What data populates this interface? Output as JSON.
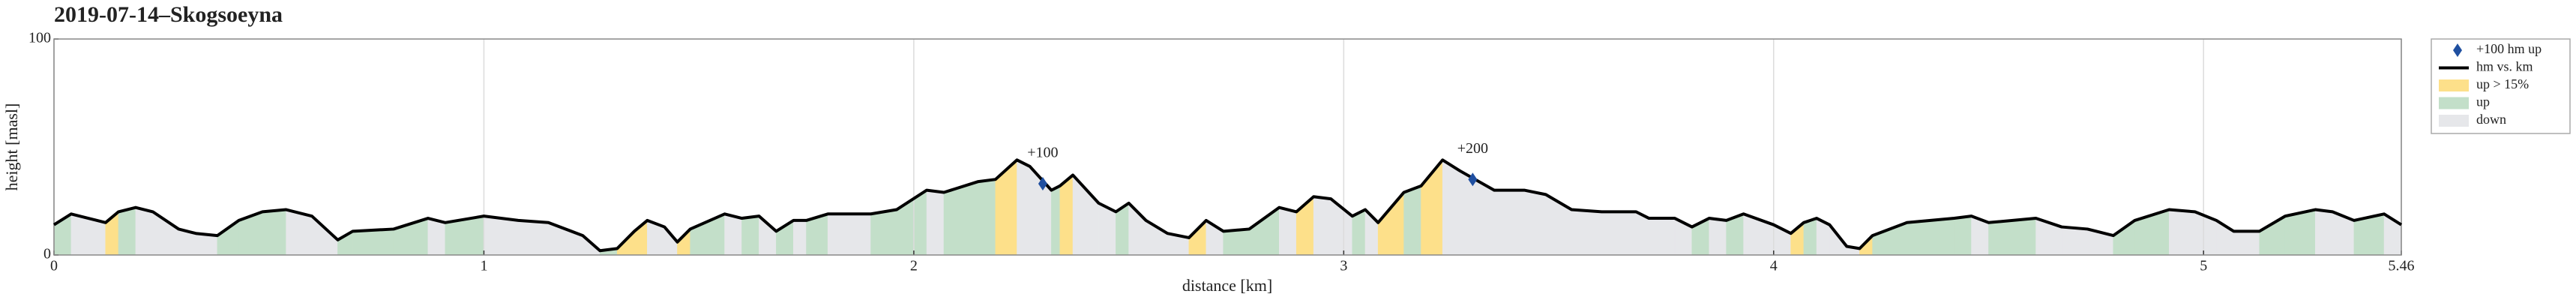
{
  "chart_data": {
    "type": "elevation",
    "title": "2019-07-14–Skogsoeyna",
    "xlabel": "distance [km]",
    "ylabel": "height [masl]",
    "xlim": [
      0,
      5.46
    ],
    "ylim": [
      0,
      100
    ],
    "xticks": [
      0,
      1,
      2,
      3,
      4,
      5,
      5.46
    ],
    "yticks": [
      0,
      100
    ],
    "grid": "x",
    "steep_grade": 15,
    "x": [
      0,
      0.04,
      0.08,
      0.12,
      0.15,
      0.19,
      0.23,
      0.29,
      0.33,
      0.38,
      0.43,
      0.485,
      0.54,
      0.6,
      0.66,
      0.695,
      0.79,
      0.87,
      0.91,
      1.0,
      1.08,
      1.15,
      1.23,
      1.27,
      1.31,
      1.35,
      1.38,
      1.42,
      1.45,
      1.48,
      1.56,
      1.6,
      1.64,
      1.68,
      1.72,
      1.75,
      1.8,
      1.9,
      1.96,
      2.03,
      2.07,
      2.15,
      2.19,
      2.24,
      2.27,
      2.32,
      2.34,
      2.37,
      2.43,
      2.47,
      2.5,
      2.54,
      2.59,
      2.64,
      2.68,
      2.72,
      2.78,
      2.85,
      2.89,
      2.93,
      2.97,
      3.02,
      3.05,
      3.08,
      3.14,
      3.18,
      3.23,
      3.27,
      3.35,
      3.42,
      3.47,
      3.53,
      3.6,
      3.68,
      3.71,
      3.77,
      3.81,
      3.85,
      3.89,
      3.93,
      4.0,
      4.04,
      4.07,
      4.1,
      4.13,
      4.17,
      4.2,
      4.23,
      4.31,
      4.42,
      4.46,
      4.5,
      4.61,
      4.67,
      4.73,
      4.79,
      4.84,
      4.92,
      4.98,
      5.03,
      5.07,
      5.13,
      5.19,
      5.26,
      5.3,
      5.35,
      5.42,
      5.46
    ],
    "series": [
      {
        "name": "hm vs. km",
        "color": "#000000",
        "values": [
          14,
          19,
          17,
          15,
          20,
          22,
          20,
          12,
          10,
          9,
          16,
          20,
          21,
          18,
          7,
          11,
          12,
          17,
          15,
          18,
          16,
          15,
          9,
          2,
          3,
          11,
          16,
          13,
          6,
          12,
          19,
          17,
          18,
          11,
          16,
          16,
          19,
          19,
          21,
          30,
          29,
          34,
          35,
          44,
          41,
          30,
          32,
          37,
          24,
          20,
          24,
          16,
          10,
          8,
          16,
          11,
          12,
          22,
          20,
          27,
          26,
          18,
          21,
          15,
          29,
          32,
          44,
          39,
          30,
          30,
          28,
          21,
          20,
          20,
          17,
          17,
          13,
          17,
          16,
          19,
          14,
          10,
          15,
          17,
          14,
          4,
          3,
          9,
          15,
          17,
          18,
          15,
          17,
          13,
          12,
          9,
          16,
          21,
          20,
          16,
          11,
          11,
          18,
          21,
          20,
          16,
          19,
          14
        ]
      },
      {
        "name": "+100 hm up",
        "color": "#1f4fa0",
        "x": [
          2.3,
          3.3
        ],
        "values": [
          33,
          35
        ],
        "labels": [
          "+100",
          "+200"
        ]
      }
    ],
    "fills": [
      {
        "name": "up > 15%",
        "color": "#fde08a"
      },
      {
        "name": "up",
        "color": "#c3dfc9"
      },
      {
        "name": "down",
        "color": "#e6e7ea"
      }
    ]
  }
}
